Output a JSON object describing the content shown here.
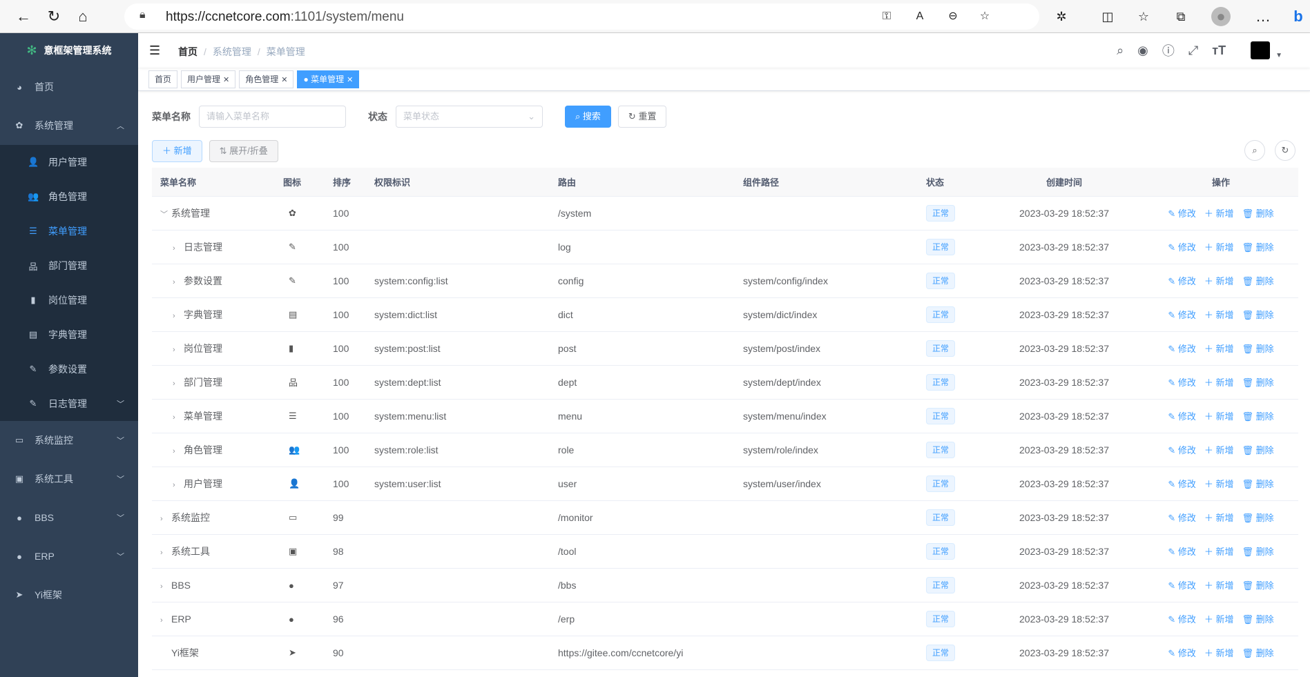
{
  "browser": {
    "url_host": "https://ccnetcore.com",
    "url_path": ":1101/system/menu",
    "icons": [
      "back-icon",
      "refresh-icon",
      "home-icon",
      "key-icon",
      "read-aloud-icon",
      "zoom-icon",
      "favorite-add-icon",
      "extensions-icon",
      "split-screen-icon",
      "favorites-icon",
      "collections-icon",
      "profile-icon",
      "more-icon",
      "bing-icon"
    ]
  },
  "sidebar": {
    "title": "意框架管理系统",
    "items": [
      {
        "label": "首页",
        "icon": "◕"
      },
      {
        "label": "系统管理",
        "icon": "✿",
        "expanded": true,
        "children": [
          {
            "label": "用户管理",
            "icon": "👤"
          },
          {
            "label": "角色管理",
            "icon": "👥"
          },
          {
            "label": "菜单管理",
            "icon": "☰",
            "active": true
          },
          {
            "label": "部门管理",
            "icon": "品"
          },
          {
            "label": "岗位管理",
            "icon": "▮"
          },
          {
            "label": "字典管理",
            "icon": "▤"
          },
          {
            "label": "参数设置",
            "icon": "✎"
          },
          {
            "label": "日志管理",
            "icon": "✎"
          }
        ]
      },
      {
        "label": "系统监控",
        "icon": "▭"
      },
      {
        "label": "系统工具",
        "icon": "▣"
      },
      {
        "label": "BBS",
        "icon": "●"
      },
      {
        "label": "ERP",
        "icon": "●"
      },
      {
        "label": "Yi框架",
        "icon": "➤"
      }
    ]
  },
  "navbar": {
    "breadcrumb": [
      "首页",
      "系统管理",
      "菜单管理"
    ]
  },
  "tags": [
    {
      "label": "首页"
    },
    {
      "label": "用户管理"
    },
    {
      "label": "角色管理"
    },
    {
      "label": "菜单管理",
      "active": true
    }
  ],
  "search": {
    "name_label": "菜单名称",
    "name_placeholder": "请输入菜单名称",
    "status_label": "状态",
    "status_placeholder": "菜单状态",
    "search_btn": "搜索",
    "reset_btn": "重置"
  },
  "toolbar": {
    "add": "新增",
    "toggle": "展开/折叠"
  },
  "colors": {
    "sidebar": "#304156",
    "submenu": "#1f2d3d",
    "primary": "#409eff"
  },
  "table": {
    "headers": [
      "菜单名称",
      "图标",
      "排序",
      "权限标识",
      "路由",
      "组件路径",
      "状态",
      "创建时间",
      "操作"
    ],
    "actions": [
      "修改",
      "新增",
      "删除"
    ],
    "rows": [
      {
        "name": "系统管理",
        "tree": "expanded",
        "level": 0,
        "icon": "✿",
        "order": "100",
        "perm": "",
        "route": "/system",
        "comp": "",
        "status": "正常",
        "time": "2023-03-29 18:52:37"
      },
      {
        "name": "日志管理",
        "tree": "collapsed",
        "level": 1,
        "icon": "✎",
        "order": "100",
        "perm": "",
        "route": "log",
        "comp": "",
        "status": "正常",
        "time": "2023-03-29 18:52:37"
      },
      {
        "name": "参数设置",
        "tree": "collapsed",
        "level": 1,
        "icon": "✎",
        "order": "100",
        "perm": "system:config:list",
        "route": "config",
        "comp": "system/config/index",
        "status": "正常",
        "time": "2023-03-29 18:52:37"
      },
      {
        "name": "字典管理",
        "tree": "collapsed",
        "level": 1,
        "icon": "▤",
        "order": "100",
        "perm": "system:dict:list",
        "route": "dict",
        "comp": "system/dict/index",
        "status": "正常",
        "time": "2023-03-29 18:52:37"
      },
      {
        "name": "岗位管理",
        "tree": "collapsed",
        "level": 1,
        "icon": "▮",
        "order": "100",
        "perm": "system:post:list",
        "route": "post",
        "comp": "system/post/index",
        "status": "正常",
        "time": "2023-03-29 18:52:37"
      },
      {
        "name": "部门管理",
        "tree": "collapsed",
        "level": 1,
        "icon": "品",
        "order": "100",
        "perm": "system:dept:list",
        "route": "dept",
        "comp": "system/dept/index",
        "status": "正常",
        "time": "2023-03-29 18:52:37"
      },
      {
        "name": "菜单管理",
        "tree": "collapsed",
        "level": 1,
        "icon": "☰",
        "order": "100",
        "perm": "system:menu:list",
        "route": "menu",
        "comp": "system/menu/index",
        "status": "正常",
        "time": "2023-03-29 18:52:37"
      },
      {
        "name": "角色管理",
        "tree": "collapsed",
        "level": 1,
        "icon": "👥",
        "order": "100",
        "perm": "system:role:list",
        "route": "role",
        "comp": "system/role/index",
        "status": "正常",
        "time": "2023-03-29 18:52:37"
      },
      {
        "name": "用户管理",
        "tree": "collapsed",
        "level": 1,
        "icon": "👤",
        "order": "100",
        "perm": "system:user:list",
        "route": "user",
        "comp": "system/user/index",
        "status": "正常",
        "time": "2023-03-29 18:52:37"
      },
      {
        "name": "系统监控",
        "tree": "collapsed",
        "level": 0,
        "icon": "▭",
        "order": "99",
        "perm": "",
        "route": "/monitor",
        "comp": "",
        "status": "正常",
        "time": "2023-03-29 18:52:37"
      },
      {
        "name": "系统工具",
        "tree": "collapsed",
        "level": 0,
        "icon": "▣",
        "order": "98",
        "perm": "",
        "route": "/tool",
        "comp": "",
        "status": "正常",
        "time": "2023-03-29 18:52:37"
      },
      {
        "name": "BBS",
        "tree": "collapsed",
        "level": 0,
        "icon": "●",
        "order": "97",
        "perm": "",
        "route": "/bbs",
        "comp": "",
        "status": "正常",
        "time": "2023-03-29 18:52:37"
      },
      {
        "name": "ERP",
        "tree": "collapsed",
        "level": 0,
        "icon": "●",
        "order": "96",
        "perm": "",
        "route": "/erp",
        "comp": "",
        "status": "正常",
        "time": "2023-03-29 18:52:37"
      },
      {
        "name": "Yi框架",
        "tree": "none",
        "level": 0,
        "icon": "➤",
        "order": "90",
        "perm": "",
        "route": "https://gitee.com/ccnetcore/yi",
        "comp": "",
        "status": "正常",
        "time": "2023-03-29 18:52:37"
      }
    ]
  }
}
